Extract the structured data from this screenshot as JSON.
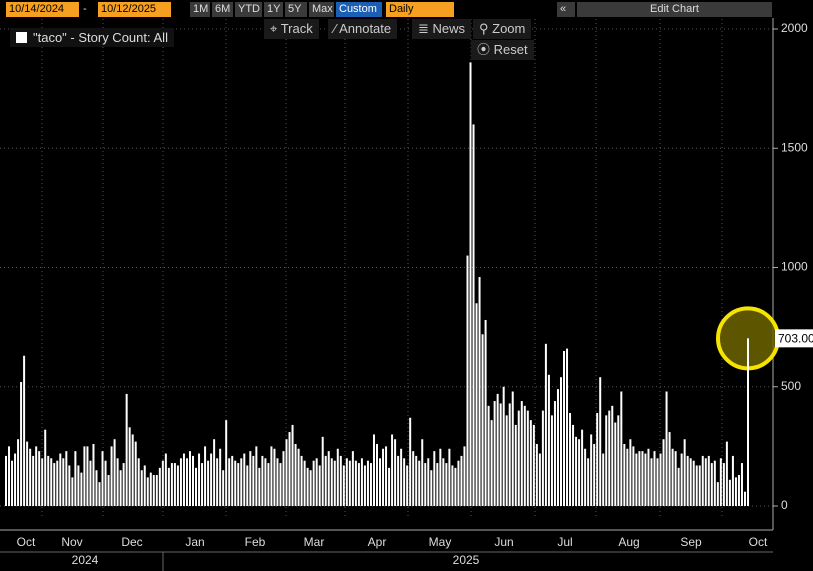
{
  "toolbar": {
    "start_date": "10/14/2024",
    "end_date": "10/12/2025",
    "ranges": [
      "1M",
      "6M",
      "YTD",
      "1Y",
      "5Y",
      "Max",
      "Custom"
    ],
    "frequency": "Daily",
    "edit": "Edit Chart",
    "tools": [
      "Track",
      "Annotate",
      "News",
      "Zoom"
    ],
    "reset": "Reset"
  },
  "chart_data": {
    "type": "bar",
    "color": "#ffffff",
    "legend": "\"taco\" - Story Count: All",
    "values": [
      210,
      250,
      190,
      220,
      280,
      520,
      630,
      270,
      240,
      210,
      250,
      230,
      200,
      320,
      210,
      200,
      180,
      190,
      220,
      200,
      230,
      170,
      120,
      230,
      170,
      140,
      250,
      250,
      190,
      260,
      150,
      100,
      230,
      190,
      130,
      250,
      280,
      200,
      150,
      180,
      470,
      330,
      300,
      270,
      200,
      150,
      170,
      120,
      140,
      130,
      130,
      160,
      190,
      220,
      160,
      180,
      180,
      170,
      200,
      220,
      200,
      230,
      210,
      160,
      220,
      180,
      250,
      190,
      220,
      280,
      200,
      240,
      150,
      360,
      200,
      210,
      190,
      180,
      200,
      220,
      170,
      230,
      210,
      250,
      160,
      210,
      200,
      180,
      250,
      240,
      200,
      180,
      230,
      280,
      310,
      340,
      260,
      240,
      210,
      190,
      160,
      150,
      190,
      200,
      170,
      290,
      210,
      230,
      200,
      190,
      240,
      210,
      170,
      200,
      190,
      230,
      190,
      180,
      200,
      170,
      190,
      180,
      300,
      260,
      200,
      240,
      250,
      160,
      300,
      280,
      210,
      240,
      200,
      170,
      370,
      230,
      210,
      190,
      280,
      180,
      200,
      150,
      230,
      180,
      240,
      200,
      180,
      240,
      170,
      160,
      190,
      210,
      250,
      1050,
      1860,
      1600,
      850,
      960,
      720,
      780,
      420,
      360,
      440,
      470,
      430,
      500,
      380,
      430,
      480,
      340,
      400,
      440,
      420,
      400,
      360,
      340,
      260,
      220,
      400,
      680,
      550,
      380,
      440,
      490,
      540,
      650,
      660,
      390,
      340,
      290,
      280,
      320,
      240,
      200,
      300,
      260,
      390,
      540,
      220,
      380,
      400,
      420,
      350,
      380,
      480,
      260,
      240,
      280,
      250,
      220,
      230,
      230,
      220,
      240,
      200,
      230,
      200,
      220,
      280,
      480,
      310,
      240,
      230,
      160,
      220,
      280,
      210,
      200,
      190,
      170,
      170,
      210,
      200,
      210,
      180,
      190,
      100,
      200,
      180,
      270,
      110,
      210,
      120,
      130,
      180,
      60,
      703
    ],
    "last_value_label": "703.00",
    "months": [
      "Oct",
      "Nov",
      "Dec",
      "Jan",
      "Feb",
      "Mar",
      "Apr",
      "May",
      "Jun",
      "Jul",
      "Aug",
      "Sep",
      "Oct"
    ],
    "years": [
      "2024",
      "2025"
    ],
    "ylim": [
      0,
      2000
    ],
    "yticks": [
      0,
      500,
      1000,
      1500,
      2000
    ],
    "grid": true
  }
}
